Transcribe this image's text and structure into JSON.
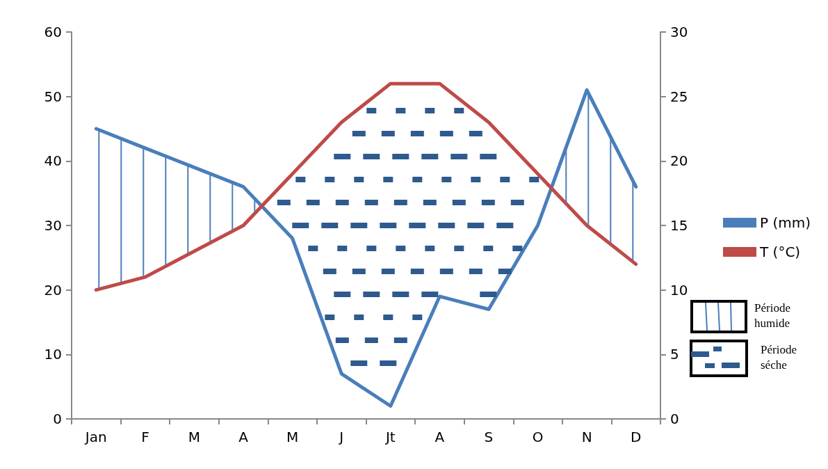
{
  "chart_data": {
    "type": "line",
    "categories": [
      "Jan",
      "F",
      "M",
      "A",
      "M",
      "J",
      "Jt",
      "A",
      "S",
      "O",
      "N",
      "D"
    ],
    "series": [
      {
        "name": "P (mm)",
        "color": "#4a7ebb",
        "values": [
          45,
          42,
          39,
          36,
          28,
          7,
          2,
          19,
          17,
          30,
          51,
          36
        ]
      },
      {
        "name": "T (°C)",
        "color": "#be4b48",
        "axis": "y2",
        "values": [
          10,
          11,
          13,
          15,
          19,
          23,
          26,
          26,
          23,
          19,
          15,
          12
        ]
      }
    ],
    "ylim": [
      0,
      60
    ],
    "yticks": [
      0,
      10,
      20,
      30,
      40,
      50,
      60
    ],
    "y2lim": [
      0,
      30
    ],
    "y2ticks": [
      0,
      5,
      10,
      15,
      20,
      25,
      30
    ],
    "grid": false,
    "legend": "right",
    "marker": "none",
    "line_style": "solid",
    "annotations": [
      "Période humide",
      "Période séche"
    ]
  }
}
